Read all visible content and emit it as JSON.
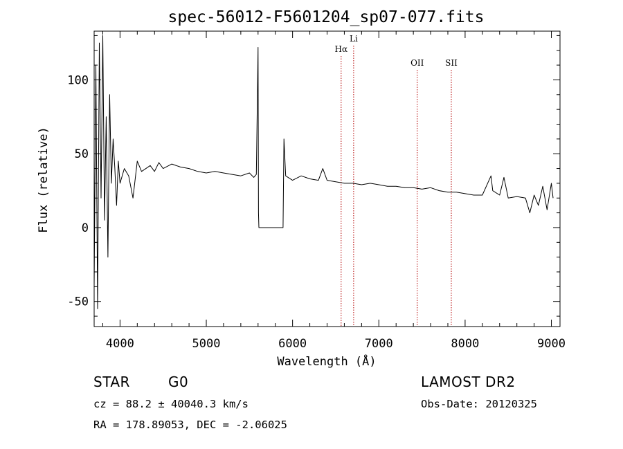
{
  "chart_data": {
    "type": "line",
    "title": "spec-56012-F5601204_sp07-077.fits",
    "xlabel": "Wavelength (Å)",
    "ylabel": "Flux (relative)",
    "xlim": [
      3700,
      9100
    ],
    "ylim": [
      -67,
      133
    ],
    "x_ticks": [
      4000,
      5000,
      6000,
      7000,
      8000,
      9000
    ],
    "y_ticks": [
      -50,
      0,
      50,
      100
    ],
    "grid": false,
    "series": [
      {
        "x": [
          3700,
          3720,
          3740,
          3760,
          3780,
          3800,
          3820,
          3840,
          3860,
          3880,
          3900,
          3920,
          3940,
          3960,
          3980,
          4000,
          4050,
          4100,
          4150,
          4200,
          4250,
          4300,
          4350,
          4400,
          4450,
          4500,
          4600,
          4700,
          4800,
          4900,
          5000,
          5100,
          5200,
          5300,
          5400,
          5500,
          5550,
          5580,
          5600,
          5605,
          5610,
          5620,
          5880,
          5890,
          5900,
          5920,
          6000,
          6100,
          6200,
          6300,
          6350,
          6400,
          6500,
          6600,
          6700,
          6800,
          6900,
          7000,
          7100,
          7200,
          7300,
          7400,
          7500,
          7600,
          7700,
          7800,
          7900,
          8000,
          8100,
          8200,
          8300,
          8320,
          8400,
          8450,
          8500,
          8600,
          8700,
          8750,
          8800,
          8850,
          8900,
          8950,
          9000,
          9020
        ],
        "y": [
          -40,
          110,
          -55,
          125,
          20,
          130,
          5,
          75,
          -20,
          90,
          30,
          60,
          40,
          15,
          45,
          30,
          40,
          35,
          20,
          45,
          38,
          40,
          42,
          38,
          44,
          40,
          43,
          41,
          40,
          38,
          37,
          38,
          37,
          36,
          35,
          37,
          34,
          36,
          122,
          10,
          0,
          0,
          0,
          0,
          60,
          35,
          32,
          35,
          33,
          32,
          40,
          32,
          31,
          30,
          30,
          29,
          30,
          29,
          28,
          28,
          27,
          27,
          26,
          27,
          25,
          24,
          24,
          23,
          22,
          22,
          35,
          25,
          22,
          34,
          20,
          21,
          20,
          10,
          22,
          15,
          28,
          12,
          30,
          20
        ]
      }
    ],
    "line_markers": [
      {
        "label": "Hα",
        "x": 6563
      },
      {
        "label": "Li",
        "x": 6708
      },
      {
        "label": "OII",
        "x": 7445
      },
      {
        "label": "SII",
        "x": 7840
      }
    ]
  },
  "info": {
    "object_type": "STAR",
    "subclass": "G0",
    "survey": "LAMOST DR2",
    "cz": "cz = 88.2 ± 40040.3 km/s",
    "obs_date": "Obs-Date: 20120325",
    "coords": "RA = 178.89053, DEC =  -2.06025"
  }
}
